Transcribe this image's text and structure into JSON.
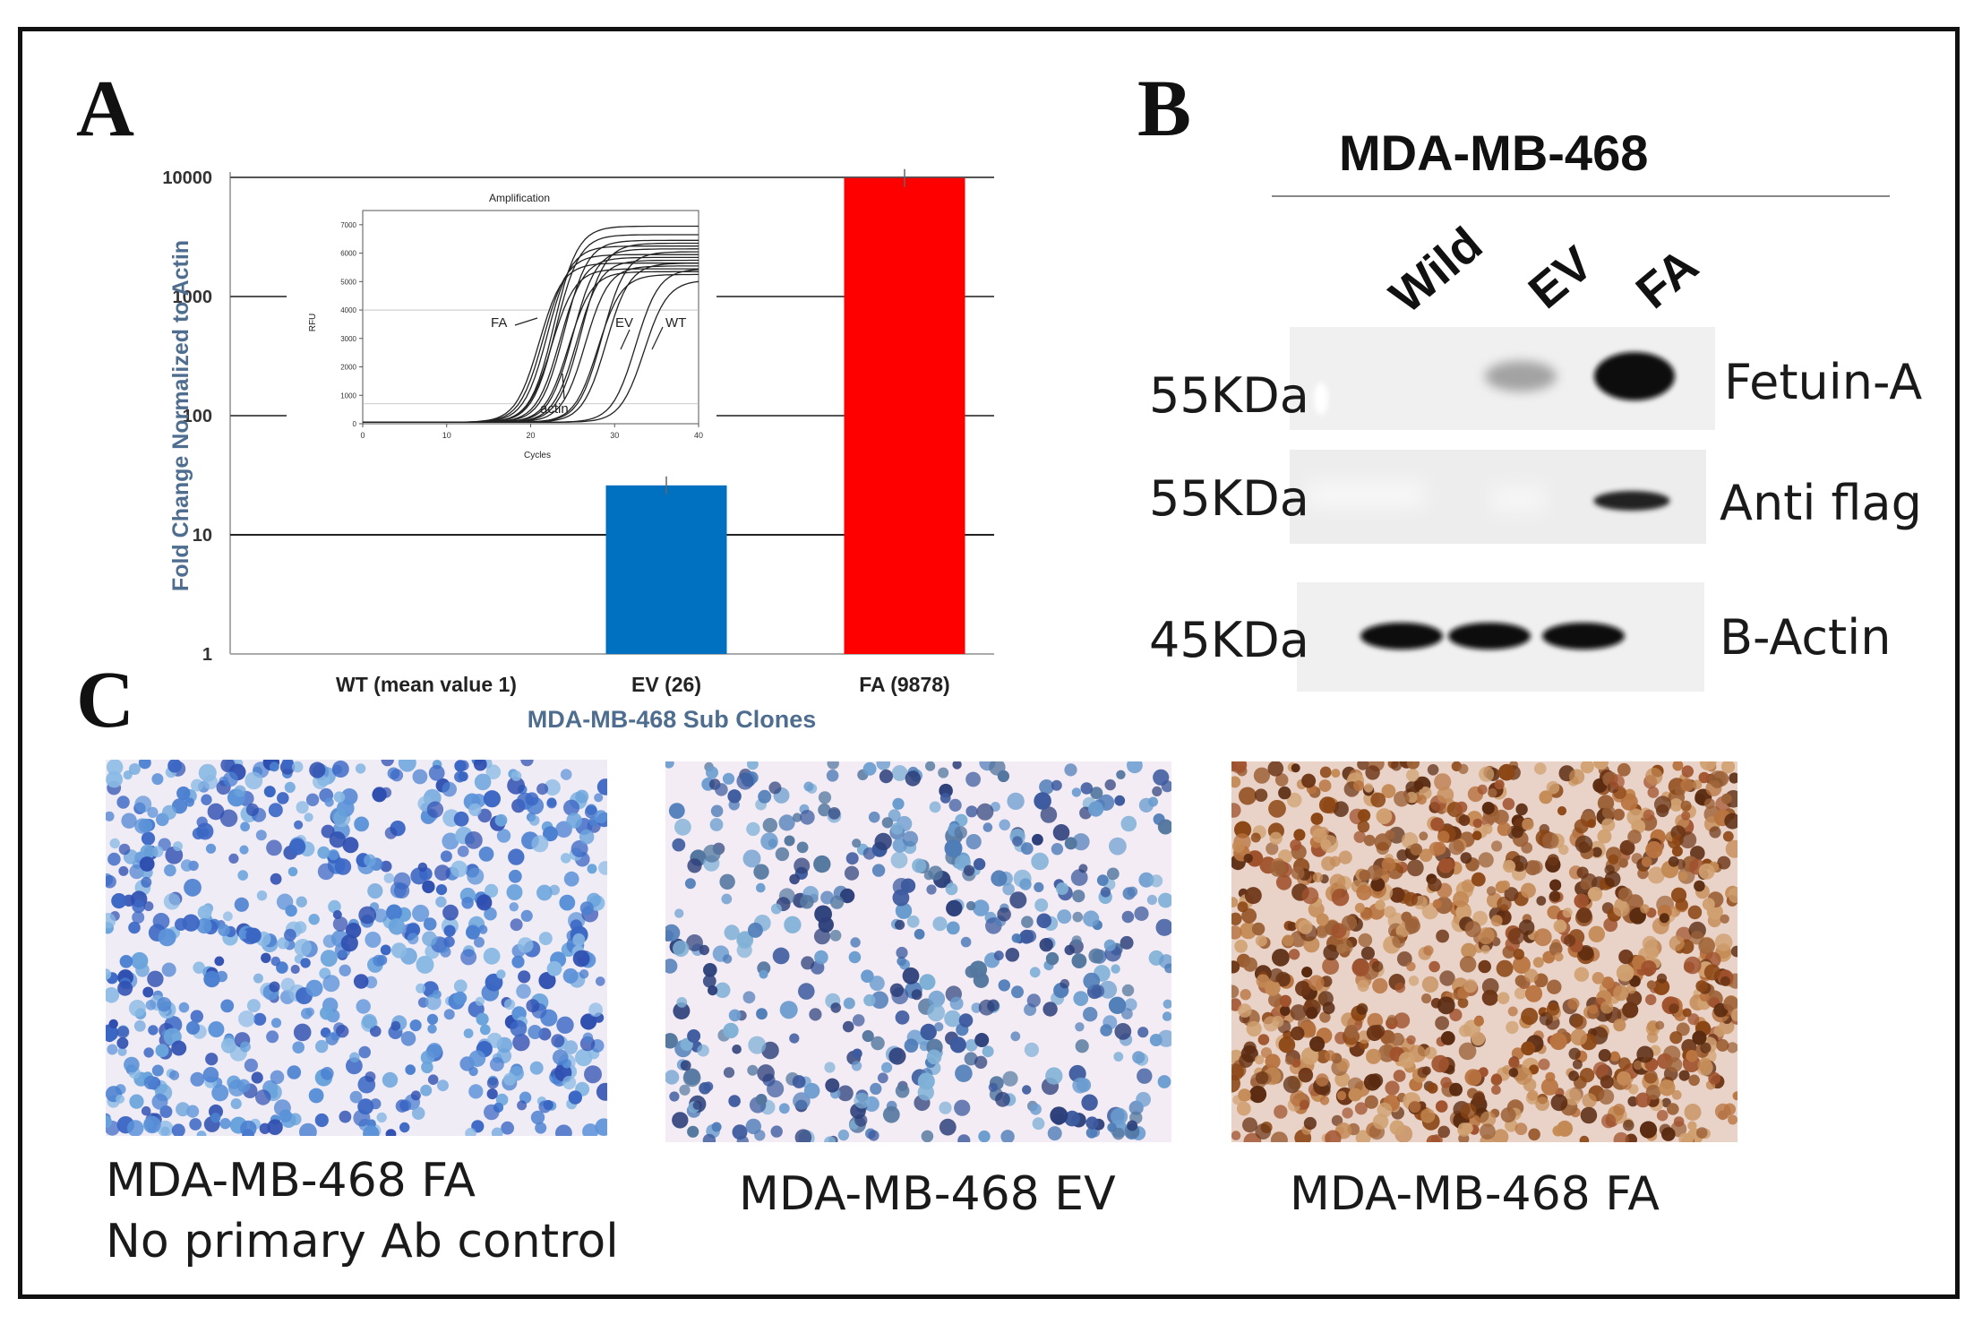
{
  "panels": {
    "a": "A",
    "b": "B",
    "c": "C"
  },
  "chart_data": [
    {
      "type": "bar",
      "scale": "log",
      "categories": [
        "WT (mean value 1)",
        "EV (26)",
        "FA (9878)"
      ],
      "values": [
        1,
        26,
        9878
      ],
      "ylabel": "Fold Change Normalized to Actin",
      "xlabel": "MDA-MB-468 Sub Clones",
      "ylim": [
        1,
        10000
      ],
      "yticks": [
        "1",
        "10",
        "100",
        "1000",
        "10000"
      ],
      "bar_colors": [
        "#0070c0",
        "#0070c0",
        "#ff0000"
      ],
      "gridlines": true
    },
    {
      "type": "line",
      "title": "Amplification",
      "xlabel": "Cycles",
      "ylabel": "RFU",
      "xlim": [
        0,
        40
      ],
      "ylim": [
        0,
        7500
      ],
      "xticks": [
        "0",
        "10",
        "20",
        "30",
        "40"
      ],
      "yticks": [
        "0",
        "1000",
        "2000",
        "3000",
        "4000",
        "5000",
        "6000",
        "7000"
      ],
      "annotations": [
        "FA",
        "EV",
        "WT",
        "actin"
      ]
    }
  ],
  "western_blot": {
    "title": "MDA-MB-468",
    "lanes": [
      "Wild",
      "EV",
      "FA"
    ],
    "rows": [
      {
        "size": "55KDa",
        "protein": "Fetuin-A",
        "intensity": [
          0.0,
          0.35,
          1.0
        ]
      },
      {
        "size": "55KDa",
        "protein": "Anti flag",
        "intensity": [
          0.0,
          0.0,
          0.9
        ]
      },
      {
        "size": "45KDa",
        "protein": "B-Actin",
        "intensity": [
          1.0,
          1.0,
          1.0
        ]
      }
    ]
  },
  "micrographs": [
    {
      "line1": "MDA-MB-468 FA",
      "line2": "No primary Ab control",
      "stain": "blue"
    },
    {
      "line1": "MDA-MB-468 EV",
      "line2": "",
      "stain": "blue-sparse"
    },
    {
      "line1": "MDA-MB-468 FA",
      "line2": "",
      "stain": "brown"
    }
  ]
}
